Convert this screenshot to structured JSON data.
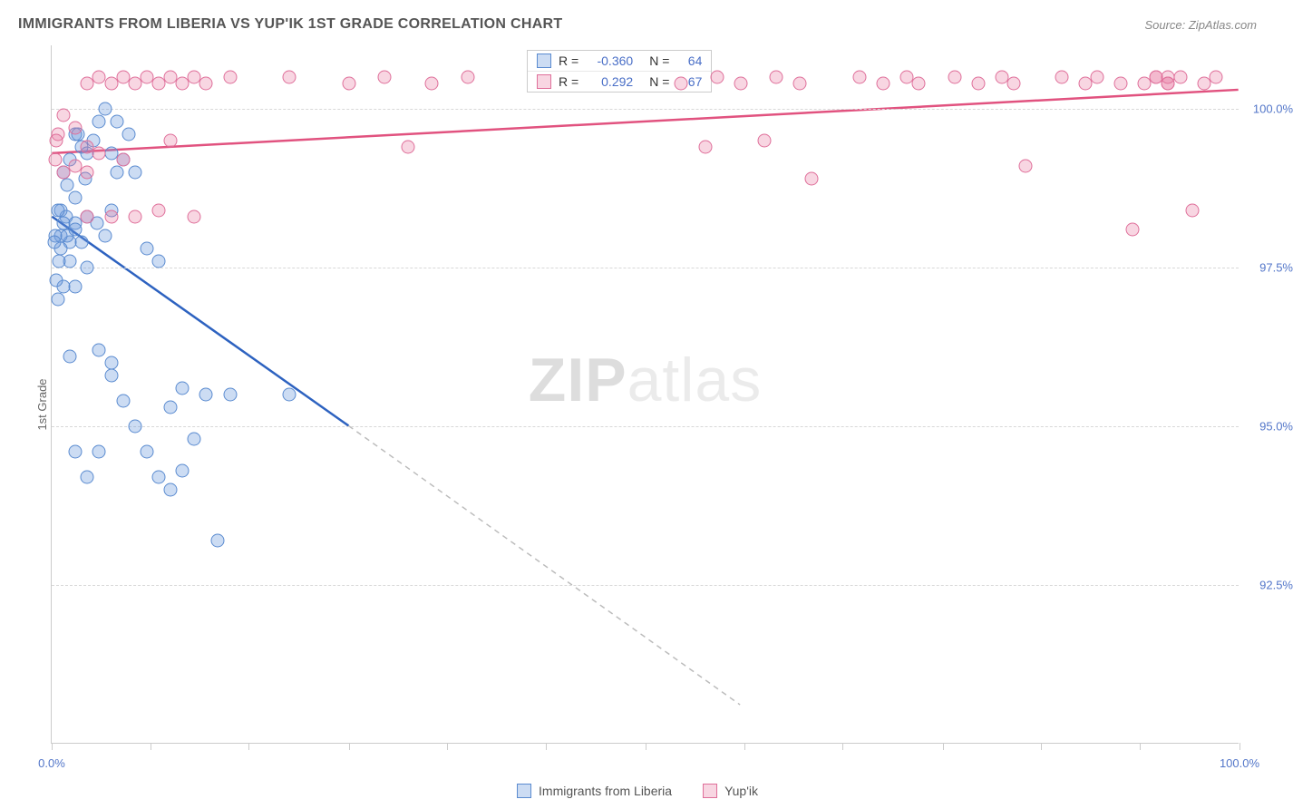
{
  "title": "IMMIGRANTS FROM LIBERIA VS YUP'IK 1ST GRADE CORRELATION CHART",
  "source_label": "Source: ZipAtlas.com",
  "y_axis_title": "1st Grade",
  "watermark": {
    "bold": "ZIP",
    "rest": "atlas"
  },
  "chart": {
    "type": "scatter",
    "background_color": "#ffffff",
    "grid_color": "#d8d8d8",
    "axis_color": "#cccccc",
    "tick_label_color": "#5376c9",
    "label_fontsize": 13,
    "title_fontsize": 16,
    "marker_size": 15,
    "marker_opacity": 0.35,
    "xlim": [
      0,
      100
    ],
    "ylim": [
      90,
      101
    ],
    "x_ticks": [
      0,
      8.3,
      16.6,
      25,
      33.3,
      41.6,
      50,
      58.3,
      66.6,
      75,
      83.3,
      91.6,
      100
    ],
    "x_tick_labels": {
      "0": "0.0%",
      "100": "100.0%"
    },
    "y_ticks": [
      92.5,
      95.0,
      97.5,
      100.0
    ],
    "y_tick_labels": [
      "92.5%",
      "95.0%",
      "97.5%",
      "100.0%"
    ],
    "series": [
      {
        "key": "liberia",
        "label": "Immigrants from Liberia",
        "color_fill": "rgba(108,156,222,0.35)",
        "color_stroke": "#5a8bd0",
        "trend_color": "#2d62c0",
        "R": "-0.360",
        "N": "64",
        "trend": {
          "x1": 0,
          "y1": 98.3,
          "x2": 25,
          "y2": 95.0,
          "dash_x2": 58,
          "dash_y2": 90.6
        },
        "points": [
          [
            2,
            99.6
          ],
          [
            2.5,
            99.4
          ],
          [
            3,
            99.3
          ],
          [
            1.5,
            99.2
          ],
          [
            2.2,
            99.6
          ],
          [
            3.5,
            99.5
          ],
          [
            4,
            99.8
          ],
          [
            4.5,
            100.0
          ],
          [
            1,
            99.0
          ],
          [
            1.3,
            98.8
          ],
          [
            2,
            98.6
          ],
          [
            2.8,
            98.9
          ],
          [
            0.8,
            98.4
          ],
          [
            1.2,
            98.3
          ],
          [
            2,
            98.2
          ],
          [
            2.5,
            97.9
          ],
          [
            0.5,
            98.4
          ],
          [
            1,
            98.2
          ],
          [
            1.5,
            97.9
          ],
          [
            0.8,
            98.0
          ],
          [
            1.3,
            98.0
          ],
          [
            2,
            98.1
          ],
          [
            3,
            98.3
          ],
          [
            3.8,
            98.2
          ],
          [
            4.5,
            98.0
          ],
          [
            5,
            98.4
          ],
          [
            5.5,
            99.0
          ],
          [
            6,
            99.2
          ],
          [
            6.5,
            99.6
          ],
          [
            7,
            99.0
          ],
          [
            8,
            97.8
          ],
          [
            9,
            97.6
          ],
          [
            3,
            97.5
          ],
          [
            2,
            97.2
          ],
          [
            1,
            97.2
          ],
          [
            0.5,
            97.0
          ],
          [
            0.8,
            97.8
          ],
          [
            1.5,
            97.6
          ],
          [
            0.3,
            98.0
          ],
          [
            0.6,
            97.6
          ],
          [
            0.4,
            97.3
          ],
          [
            0.2,
            97.9
          ],
          [
            4,
            96.2
          ],
          [
            5,
            96.0
          ],
          [
            6,
            95.4
          ],
          [
            7,
            95.0
          ],
          [
            8,
            94.6
          ],
          [
            9,
            94.2
          ],
          [
            10,
            94.0
          ],
          [
            11,
            94.3
          ],
          [
            12,
            94.8
          ],
          [
            10,
            95.3
          ],
          [
            11,
            95.6
          ],
          [
            13,
            95.5
          ],
          [
            15,
            95.5
          ],
          [
            20,
            95.5
          ],
          [
            5,
            95.8
          ],
          [
            4,
            94.6
          ],
          [
            3,
            94.2
          ],
          [
            2,
            94.6
          ],
          [
            1.5,
            96.1
          ],
          [
            5,
            99.3
          ],
          [
            5.5,
            99.8
          ],
          [
            14,
            93.2
          ]
        ]
      },
      {
        "key": "yupik",
        "label": "Yup'ik",
        "color_fill": "rgba(232,120,160,0.3)",
        "color_stroke": "#df6f9a",
        "trend_color": "#e1527f",
        "R": "0.292",
        "N": "67",
        "trend": {
          "x1": 0,
          "y1": 99.3,
          "x2": 100,
          "y2": 100.3
        },
        "points": [
          [
            1,
            99.0
          ],
          [
            2,
            99.1
          ],
          [
            3,
            99.4
          ],
          [
            2,
            99.7
          ],
          [
            1,
            99.9
          ],
          [
            0.5,
            99.6
          ],
          [
            0.3,
            99.2
          ],
          [
            0.4,
            99.5
          ],
          [
            3,
            100.4
          ],
          [
            4,
            100.5
          ],
          [
            5,
            100.4
          ],
          [
            6,
            100.5
          ],
          [
            7,
            100.4
          ],
          [
            8,
            100.5
          ],
          [
            9,
            100.4
          ],
          [
            10,
            100.5
          ],
          [
            11,
            100.4
          ],
          [
            12,
            100.5
          ],
          [
            13,
            100.4
          ],
          [
            15,
            100.5
          ],
          [
            10,
            99.5
          ],
          [
            5,
            98.3
          ],
          [
            7,
            98.3
          ],
          [
            9,
            98.4
          ],
          [
            6,
            99.2
          ],
          [
            4,
            99.3
          ],
          [
            3,
            99.0
          ],
          [
            3,
            98.3
          ],
          [
            12,
            98.3
          ],
          [
            20,
            100.5
          ],
          [
            25,
            100.4
          ],
          [
            28,
            100.5
          ],
          [
            30,
            99.4
          ],
          [
            32,
            100.4
          ],
          [
            35,
            100.5
          ],
          [
            55,
            99.4
          ],
          [
            53,
            100.4
          ],
          [
            56,
            100.5
          ],
          [
            58,
            100.4
          ],
          [
            61,
            100.5
          ],
          [
            63,
            100.4
          ],
          [
            60,
            99.5
          ],
          [
            64,
            98.9
          ],
          [
            68,
            100.5
          ],
          [
            70,
            100.4
          ],
          [
            72,
            100.5
          ],
          [
            73,
            100.4
          ],
          [
            76,
            100.5
          ],
          [
            78,
            100.4
          ],
          [
            80,
            100.5
          ],
          [
            81,
            100.4
          ],
          [
            82,
            99.1
          ],
          [
            85,
            100.5
          ],
          [
            87,
            100.4
          ],
          [
            88,
            100.5
          ],
          [
            90,
            100.4
          ],
          [
            91,
            98.1
          ],
          [
            92,
            100.4
          ],
          [
            93,
            100.5
          ],
          [
            94,
            100.4
          ],
          [
            94,
            100.5
          ],
          [
            95,
            100.5
          ],
          [
            96,
            98.4
          ],
          [
            97,
            100.4
          ],
          [
            98,
            100.5
          ],
          [
            94,
            100.4
          ],
          [
            93,
            100.5
          ]
        ]
      }
    ]
  },
  "correlation_legend": {
    "R_label": "R =",
    "N_label": "N ="
  },
  "bottom_legend": {
    "items": [
      {
        "series_key": "liberia"
      },
      {
        "series_key": "yupik"
      }
    ]
  }
}
